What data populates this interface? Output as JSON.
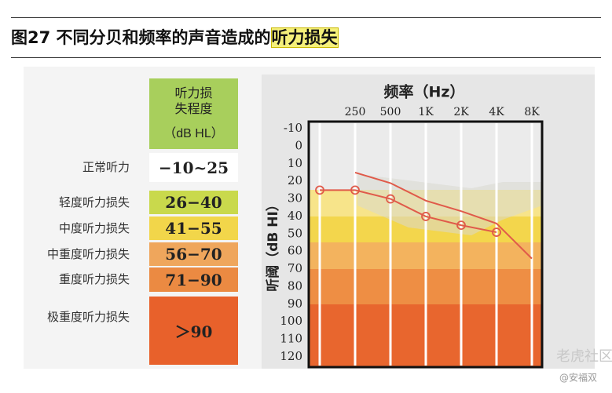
{
  "figure_title": {
    "prefix": "图27 不同分贝和频率的声音造成的",
    "highlight": "听力损失"
  },
  "table": {
    "header": "听力损失程度",
    "header_unit": "（dB HL）",
    "rows": [
      {
        "label": "正常听力",
        "range": "−10~25",
        "color": "#ffffff"
      },
      {
        "label": "轻度听力损失",
        "range": "26−40",
        "color": "#c9d94c"
      },
      {
        "label": "中度听力损失",
        "range": "41−55",
        "color": "#f2d64a"
      },
      {
        "label": "中重度听力损失",
        "range": "56−70",
        "color": "#efa65c"
      },
      {
        "label": "重度听力损失",
        "range": "71−90",
        "color": "#eb8a42"
      },
      {
        "label": "极重度听力损失",
        "range": "＞90",
        "color": "#e8612b"
      }
    ]
  },
  "chart_data": {
    "type": "line",
    "title": "频率（Hz）",
    "y_label": "听阈（dB HI）",
    "categories": [
      null,
      "250",
      "500",
      "1K",
      "2K",
      "4K",
      "8K"
    ],
    "series": [
      {
        "color": "#e05a4a",
        "markers": true,
        "values": [
          25,
          25,
          30,
          40,
          45,
          49,
          null
        ]
      },
      {
        "color": "#e05a4a",
        "markers": false,
        "values": [
          null,
          15,
          21,
          31,
          37,
          44,
          64
        ]
      }
    ],
    "ylim": [
      -10,
      120
    ],
    "yticks": [
      -10,
      0,
      10,
      20,
      30,
      40,
      50,
      60,
      70,
      80,
      90,
      100,
      110,
      120
    ],
    "y_inverted": true,
    "grid": false
  },
  "watermark": {
    "brand": "老虎社区",
    "author": "@安福双"
  }
}
